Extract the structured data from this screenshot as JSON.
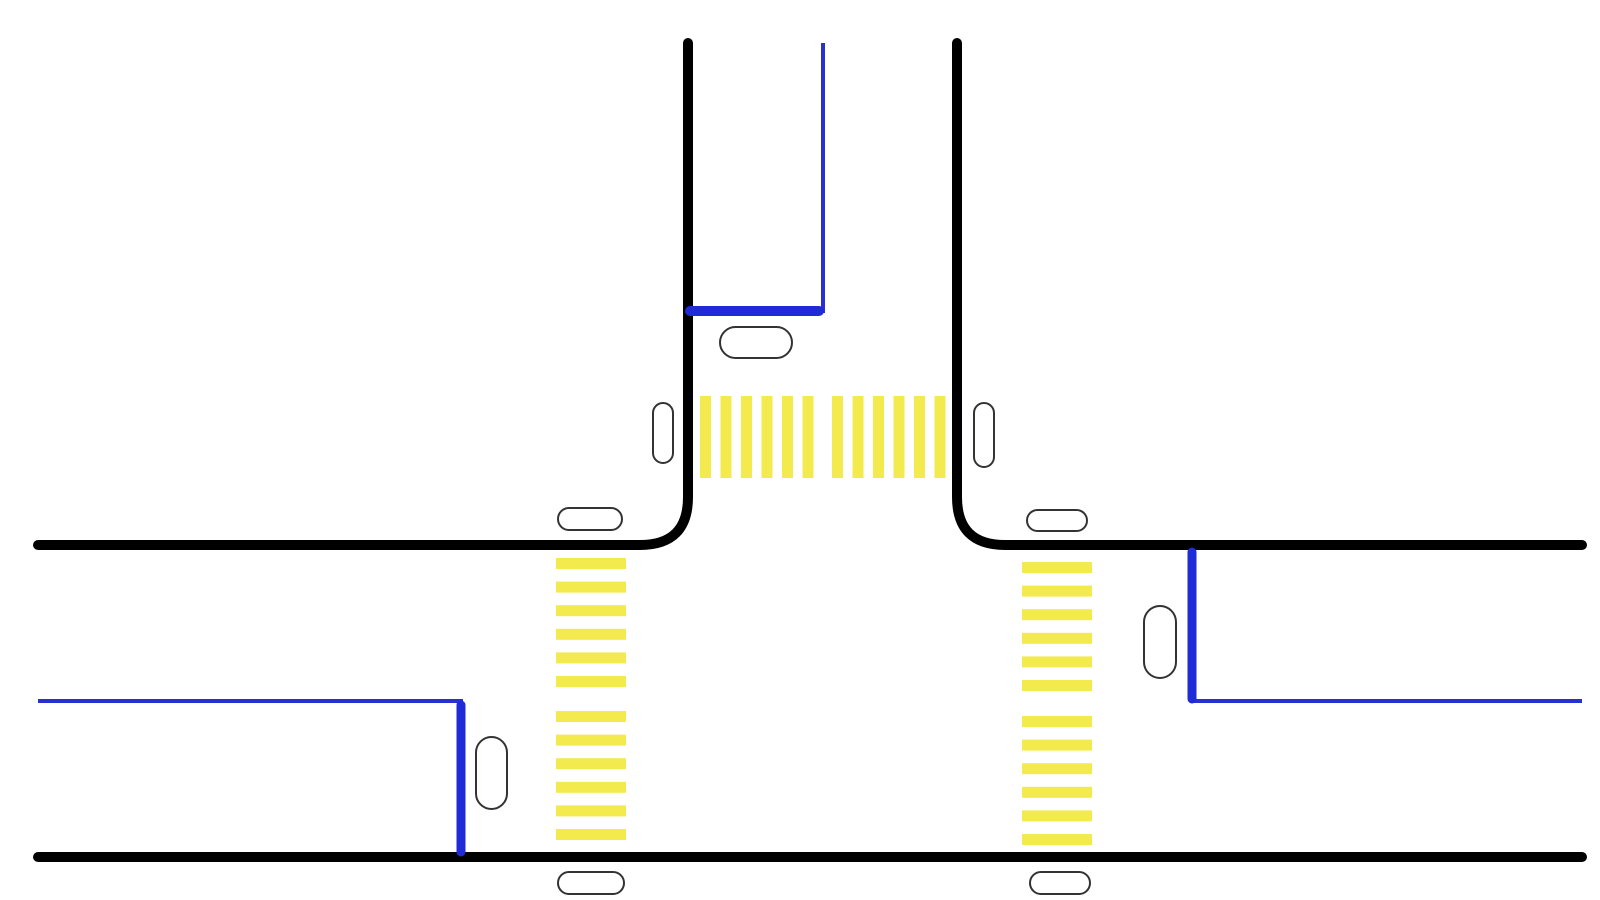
{
  "colors": {
    "background": "#ffffff",
    "curb": "#000000",
    "lane_divider": "#2a2fd0",
    "stop_line": "#1f2bd6",
    "crosswalk": "#f3ea4d",
    "signal_outline": "#333333"
  },
  "diagram": {
    "type": "t-intersection",
    "approaches": [
      "north",
      "west",
      "east"
    ],
    "crosswalks": [
      {
        "approach": "north",
        "stripes": 12
      },
      {
        "approach": "west",
        "stripes": 12
      },
      {
        "approach": "east",
        "stripes": 12
      }
    ],
    "stop_lines": 3,
    "signal_heads": 9
  }
}
